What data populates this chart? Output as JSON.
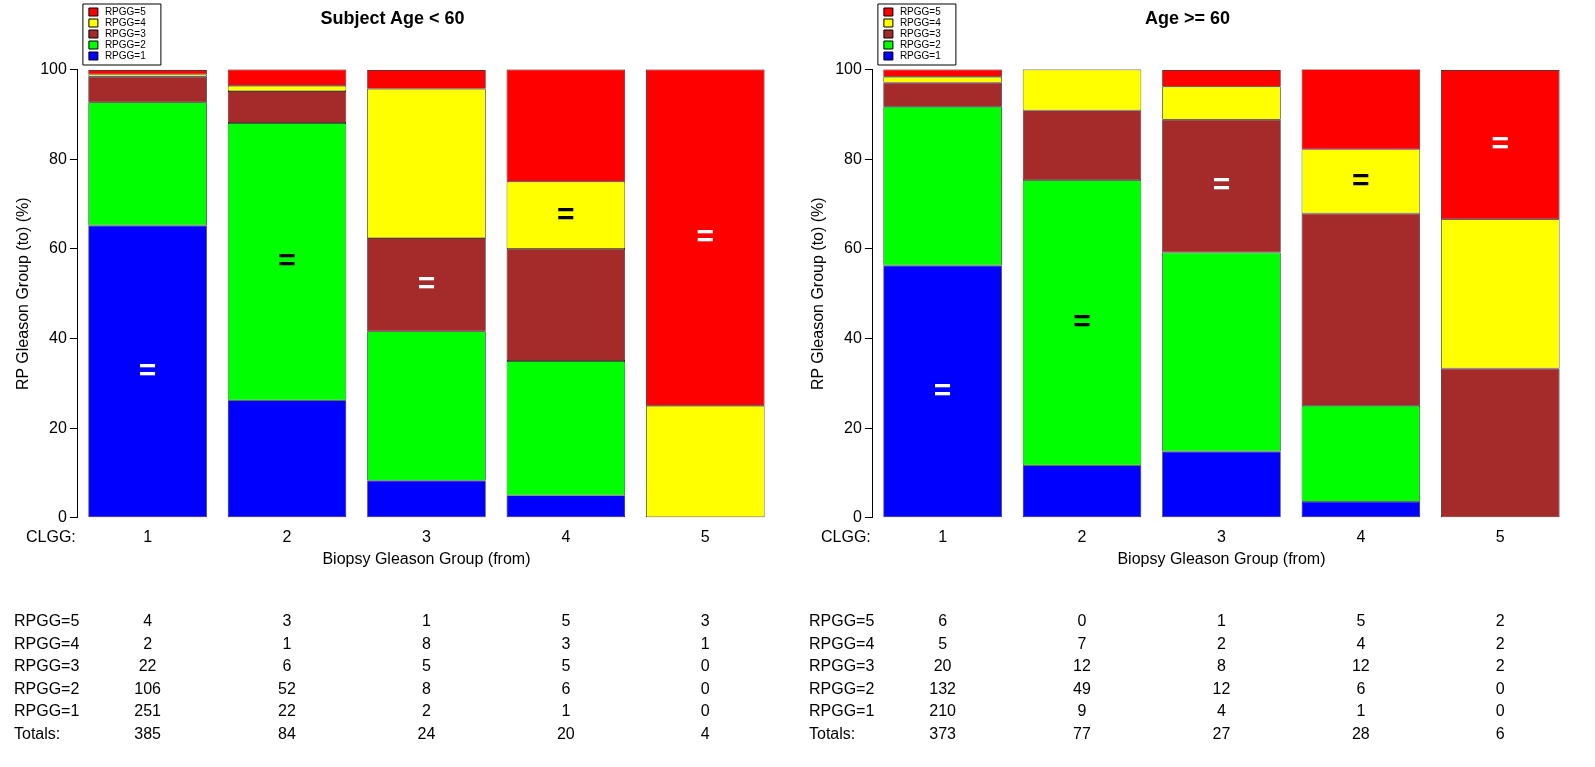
{
  "chart_data": [
    {
      "type": "bar",
      "title": "Subject Age < 60",
      "xlabel": "Biopsy Gleason Group (from)",
      "ylabel": "RP Gleason Group (to) (%)",
      "categories": [
        "1",
        "2",
        "3",
        "4",
        "5"
      ],
      "stacked": true,
      "ylim": [
        0,
        100
      ],
      "yticks": [
        0,
        20,
        40,
        60,
        80,
        100
      ],
      "grid": false,
      "legend": "top left",
      "series": [
        {
          "name": "RPGG=1",
          "color": "#0000ff",
          "values": [
            65.2,
            26.2,
            8.3,
            5,
            0
          ]
        },
        {
          "name": "RPGG=2",
          "color": "#00ff00",
          "values": [
            27.5,
            61.9,
            33.3,
            30,
            0
          ]
        },
        {
          "name": "RPGG=3",
          "color": "#a52a2a",
          "values": [
            5.7,
            7.1,
            20.8,
            25,
            0
          ]
        },
        {
          "name": "RPGG=4",
          "color": "#ffff00",
          "values": [
            0.5,
            1.2,
            33.3,
            15,
            25
          ]
        },
        {
          "name": "RPGG=5",
          "color": "#ff0000",
          "values": [
            1.0,
            3.6,
            4.2,
            25,
            75
          ]
        }
      ],
      "annotations": [
        "CLGG:",
        "=",
        "=",
        "=",
        "=",
        "="
      ]
    },
    {
      "type": "heatmap",
      "categories": [
        "1",
        "2",
        "3",
        "4",
        "5"
      ],
      "tick_labels": "y",
      "y_categories": [
        "RPGG=5",
        "RPGG=4",
        "RPGG=3",
        "RPGG=2",
        "RPGG=1",
        "Totals:"
      ],
      "data_labels": true,
      "cells": [
        [
          4,
          3,
          1,
          5,
          3
        ],
        [
          2,
          1,
          8,
          3,
          1
        ],
        [
          22,
          6,
          5,
          5,
          0
        ],
        [
          106,
          52,
          8,
          6,
          0
        ],
        [
          251,
          22,
          2,
          1,
          0
        ],
        [
          385,
          84,
          24,
          20,
          4
        ]
      ]
    },
    {
      "type": "bar",
      "title": "Age >= 60",
      "xlabel": "Biopsy Gleason Group (from)",
      "ylabel": "RP Gleason Group (to) (%)",
      "categories": [
        "1",
        "2",
        "3",
        "4",
        "5"
      ],
      "stacked": true,
      "ylim": [
        0,
        100
      ],
      "yticks": [
        0,
        20,
        40,
        60,
        80,
        100
      ],
      "grid": false,
      "legend": "top left",
      "series": [
        {
          "name": "RPGG=1",
          "color": "#0000ff",
          "values": [
            56.3,
            11.7,
            14.8,
            3.6,
            0
          ]
        },
        {
          "name": "RPGG=2",
          "color": "#00ff00",
          "values": [
            35.4,
            63.6,
            44.4,
            21.4,
            0
          ]
        },
        {
          "name": "RPGG=3",
          "color": "#a52a2a",
          "values": [
            5.4,
            15.6,
            29.6,
            42.9,
            33.3
          ]
        },
        {
          "name": "RPGG=4",
          "color": "#ffff00",
          "values": [
            1.3,
            9.1,
            7.4,
            14.3,
            33.3
          ]
        },
        {
          "name": "RPGG=5",
          "color": "#ff0000",
          "values": [
            1.6,
            0,
            3.7,
            17.9,
            33.3
          ]
        }
      ],
      "annotations": [
        "CLGG:",
        "=",
        "=",
        "=",
        "=",
        "="
      ]
    },
    {
      "type": "heatmap",
      "categories": [
        "1",
        "2",
        "3",
        "4",
        "5"
      ],
      "tick_labels": "y",
      "y_categories": [
        "RPGG=5",
        "RPGG=4",
        "RPGG=3",
        "RPGG=2",
        "RPGG=1",
        "Totals:"
      ],
      "data_labels": true,
      "cells": [
        [
          6,
          0,
          1,
          5,
          2
        ],
        [
          5,
          7,
          2,
          4,
          2
        ],
        [
          20,
          12,
          8,
          12,
          2
        ],
        [
          132,
          49,
          12,
          6,
          0
        ],
        [
          210,
          9,
          4,
          1,
          0
        ],
        [
          373,
          77,
          27,
          28,
          6
        ]
      ]
    }
  ]
}
